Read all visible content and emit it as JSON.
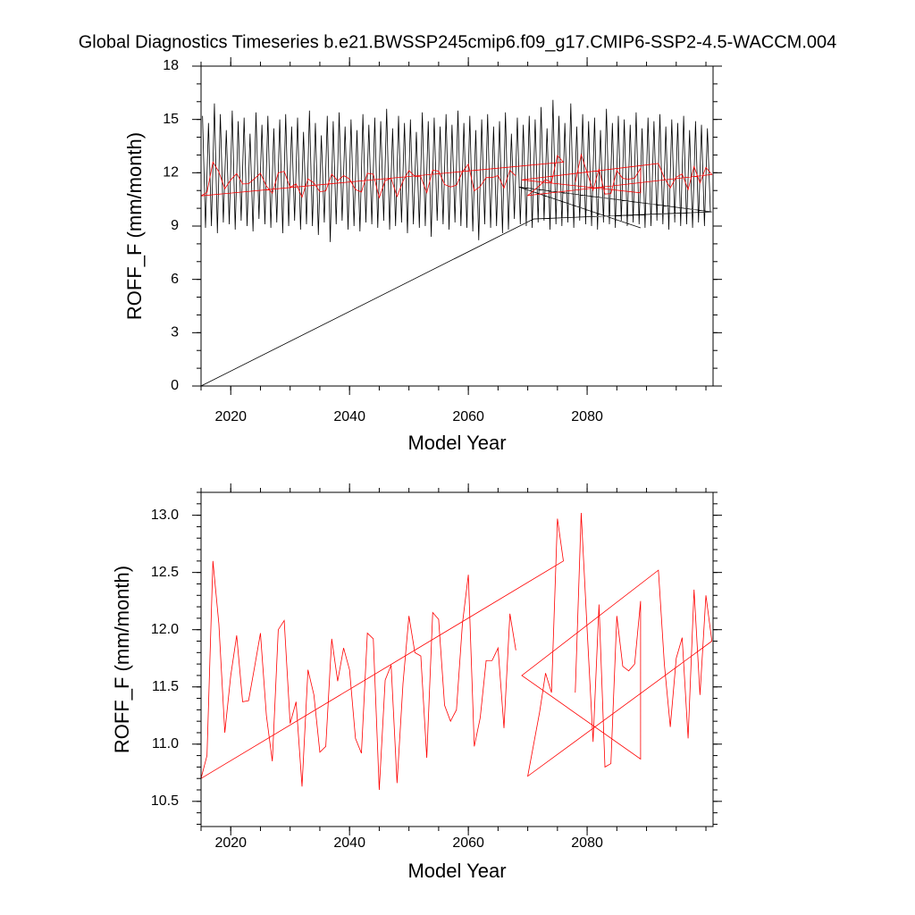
{
  "chart_data": [
    {
      "type": "line",
      "title": "Global Diagnostics Timeseries b.e21.BWSSP245cmip6.f09_g17.CMIP6-SSP2-4.5-WACCM.004",
      "x_label": "Model Year",
      "y_label": "ROFF_F (mm/month)",
      "xlim": [
        2015,
        2101.2
      ],
      "xticks": [
        2020,
        2040,
        2060,
        2080
      ],
      "ylim": [
        0,
        18
      ],
      "yticks": [
        0,
        3,
        6,
        9,
        12,
        15,
        18
      ],
      "series": [
        {
          "color": "#000000",
          "x": [
            2015,
            2071,
            2101,
            2068.5,
            2089,
            null,
            2015.25,
            2015.75,
            2016.25,
            2016.75,
            2017.25,
            2017.75,
            2018.25,
            2018.75,
            2019.25,
            2019.75,
            2020.25,
            2020.75,
            2021.25,
            2021.75,
            2022.25,
            2022.75,
            2023.25,
            2023.75,
            2024.25,
            2024.75,
            2025.25,
            2025.75,
            2026.25,
            2026.75,
            2027.25,
            2027.75,
            2028.25,
            2028.75,
            2029.25,
            2029.75,
            2030.25,
            2030.75,
            2031.25,
            2031.75,
            2032.25,
            2032.75,
            2033.25,
            2033.75,
            2034.25,
            2034.75,
            2035.25,
            2035.75,
            2036.25,
            2036.75,
            2037.25,
            2037.75,
            2038.25,
            2038.75,
            2039.25,
            2039.75,
            2040.25,
            2040.75,
            2041.25,
            2041.75,
            2042.25,
            2042.75,
            2043.25,
            2043.75,
            2044.25,
            2044.75,
            2045.25,
            2045.75,
            2046.25,
            2046.75,
            2047.25,
            2047.75,
            2048.25,
            2048.75,
            2049.25,
            2049.75,
            2050.25,
            2050.75,
            2051.25,
            2051.75,
            2052.25,
            2052.75,
            2053.25,
            2053.75,
            2054.25,
            2054.75,
            2055.25,
            2055.75,
            2056.25,
            2056.75,
            2057.25,
            2057.75,
            2058.25,
            2058.75,
            2059.25,
            2059.75,
            2060.25,
            2060.75,
            2061.25,
            2061.75,
            2062.25,
            2062.75,
            2063.25,
            2063.75,
            2064.25,
            2064.75,
            2065.25,
            2065.75,
            2066.25,
            2066.75,
            2067.25,
            2067.75,
            2068.25,
            2068.75,
            2069.25,
            2069.75,
            2070.25,
            2070.75,
            2071.25,
            2071.75,
            2072.25,
            2072.75,
            2073.25,
            2073.75,
            2074.25,
            2074.75,
            2075.25,
            2075.75,
            2076.25,
            2076.75,
            2077.25,
            2077.75,
            2078.25,
            2078.75,
            2079.25,
            2079.75,
            2080.25,
            2080.75,
            2081.25,
            2081.75,
            2082.25,
            2082.75,
            2083.25,
            2083.75,
            2084.25,
            2084.75,
            2085.25,
            2085.75,
            2086.25,
            2086.75,
            2087.25,
            2087.75,
            2088.25,
            2088.75,
            2089.25,
            2089.75,
            2090.25,
            2090.75,
            2091.25,
            2091.75,
            2092.25,
            2092.75,
            2093.25,
            2093.75,
            2094.25,
            2094.75,
            2095.25,
            2095.75,
            2096.25,
            2096.75,
            2097.25,
            2097.75,
            2098.25,
            2098.75,
            2099.25,
            2099.75,
            2100.25,
            2100.75
          ],
          "values": [
            0,
            9.4,
            9.8,
            11.2,
            8.9,
            null,
            15.2,
            8.9,
            14.8,
            9.0,
            15.9,
            8.6,
            15.3,
            9.2,
            14.4,
            9.1,
            15.5,
            8.8,
            14.9,
            9.3,
            15.1,
            9.0,
            14.2,
            8.7,
            15.4,
            9.4,
            14.7,
            9.1,
            15.2,
            8.9,
            14.5,
            9.2,
            15.0,
            8.6,
            15.3,
            9.0,
            14.6,
            9.3,
            15.1,
            8.8,
            14.3,
            9.1,
            15.5,
            9.0,
            14.8,
            8.5,
            14.1,
            9.2,
            15.2,
            8.1,
            14.9,
            9.1,
            15.4,
            9.3,
            14.6,
            8.8,
            15.0,
            9.0,
            14.4,
            8.7,
            15.3,
            9.2,
            14.7,
            9.1,
            15.1,
            8.9,
            14.9,
            9.3,
            15.6,
            8.8,
            14.5,
            9.0,
            15.2,
            9.2,
            14.8,
            8.6,
            15.0,
            9.1,
            14.3,
            8.9,
            15.4,
            9.0,
            14.9,
            8.4,
            15.1,
            9.3,
            14.6,
            9.1,
            15.3,
            8.8,
            14.7,
            9.2,
            15.5,
            9.0,
            14.8,
            8.9,
            15.2,
            8.7,
            14.4,
            8.2,
            15.0,
            9.1,
            15.3,
            8.9,
            14.6,
            9.0,
            14.9,
            8.6,
            15.4,
            8.8,
            14.2,
            9.4,
            15.1,
            9.1,
            14.7,
            9.0,
            15.2,
            8.9,
            15.0,
            9.2,
            15.7,
            9.3,
            14.5,
            8.8,
            16.1,
            9.1,
            15.2,
            9.0,
            14.8,
            9.2,
            15.9,
            8.9,
            14.6,
            9.3,
            15.3,
            9.1,
            14.9,
            9.0,
            15.1,
            8.8,
            14.4,
            9.2,
            15.6,
            9.1,
            14.8,
            8.9,
            15.2,
            9.3,
            15.0,
            9.0,
            14.7,
            9.2,
            15.4,
            9.1,
            14.5,
            8.9,
            15.1,
            9.0,
            14.9,
            9.3,
            15.3,
            9.1,
            14.6,
            8.8,
            15.0,
            9.2,
            14.8,
            9.0,
            15.2,
            9.1,
            14.4,
            8.9,
            14.9,
            9.2,
            14.7,
            9.0,
            14.5,
            9.8
          ]
        },
        {
          "color": "#ff0000",
          "x": [
            2078,
            2079,
            2080,
            2081,
            2082,
            2083,
            2084,
            2085,
            2086,
            2087,
            2088,
            2089,
            2089,
            2069,
            2092,
            2093,
            2094,
            2095,
            2096,
            2097,
            2098,
            2099,
            2100,
            2101,
            2070,
            2072,
            2073,
            2074,
            2075,
            2076,
            2015,
            2016,
            2017,
            2018,
            2019,
            2020,
            2021,
            2022,
            2023,
            2024,
            2025,
            2026,
            2027,
            2028,
            2029,
            2030,
            2031,
            2032,
            2033,
            2034,
            2035,
            2036,
            2037,
            2038,
            2039,
            2040,
            2041,
            2042,
            2043,
            2044,
            2045,
            2046,
            2047,
            2048,
            2049,
            2050,
            2051,
            2052,
            2053,
            2054,
            2055,
            2056,
            2057,
            2058,
            2059,
            2060,
            2061,
            2062,
            2063,
            2064,
            2065,
            2066,
            2067,
            2068
          ],
          "values": [
            11.45,
            13.02,
            12.0,
            11.02,
            12.22,
            10.8,
            10.83,
            12.12,
            11.68,
            11.64,
            11.7,
            12.25,
            10.87,
            11.6,
            12.52,
            11.7,
            11.15,
            11.75,
            11.93,
            11.05,
            12.35,
            11.43,
            12.3,
            11.9,
            10.72,
            11.28,
            11.62,
            11.45,
            12.97,
            12.6,
            10.7,
            10.9,
            12.6,
            12.05,
            11.1,
            11.6,
            11.95,
            11.37,
            11.38,
            11.67,
            11.97,
            11.25,
            10.85,
            12.0,
            12.08,
            11.18,
            11.37,
            10.63,
            11.65,
            11.43,
            10.93,
            10.98,
            11.92,
            11.55,
            11.84,
            11.65,
            11.05,
            10.92,
            11.97,
            11.92,
            10.6,
            11.56,
            11.69,
            10.66,
            11.53,
            12.12,
            11.8,
            11.77,
            10.88,
            12.15,
            12.09,
            11.34,
            11.2,
            11.3,
            12.05,
            12.48,
            10.98,
            11.23,
            11.73,
            11.73,
            11.84,
            11.14,
            12.14,
            11.82
          ]
        }
      ]
    },
    {
      "type": "line",
      "x_label": "Model Year",
      "y_label": "ROFF_F (mm/month)",
      "xlim": [
        2015,
        2101.2
      ],
      "xticks": [
        2020,
        2040,
        2060,
        2080
      ],
      "ylim": [
        10.28,
        13.2
      ],
      "yticks": [
        10.5,
        {
          "value": 11,
          "label": "11.0"
        },
        11.5,
        {
          "value": 12,
          "label": "12.0"
        },
        12.5,
        {
          "value": 13,
          "label": "13.0"
        }
      ],
      "series": [
        {
          "color": "#ff0000",
          "x": [
            2078,
            2079,
            2080,
            2081,
            2082,
            2083,
            2084,
            2085,
            2086,
            2087,
            2088,
            2089,
            2089,
            2069,
            2092,
            2093,
            2094,
            2095,
            2096,
            2097,
            2098,
            2099,
            2100,
            2101,
            2070,
            2072,
            2073,
            2074,
            2075,
            2076,
            2015,
            2016,
            2017,
            2018,
            2019,
            2020,
            2021,
            2022,
            2023,
            2024,
            2025,
            2026,
            2027,
            2028,
            2029,
            2030,
            2031,
            2032,
            2033,
            2034,
            2035,
            2036,
            2037,
            2038,
            2039,
            2040,
            2041,
            2042,
            2043,
            2044,
            2045,
            2046,
            2047,
            2048,
            2049,
            2050,
            2051,
            2052,
            2053,
            2054,
            2055,
            2056,
            2057,
            2058,
            2059,
            2060,
            2061,
            2062,
            2063,
            2064,
            2065,
            2066,
            2067,
            2068
          ],
          "values": [
            11.45,
            13.02,
            12.0,
            11.02,
            12.22,
            10.8,
            10.83,
            12.12,
            11.68,
            11.64,
            11.7,
            12.25,
            10.87,
            11.6,
            12.52,
            11.7,
            11.15,
            11.75,
            11.93,
            11.05,
            12.35,
            11.43,
            12.3,
            11.9,
            10.72,
            11.28,
            11.62,
            11.45,
            12.97,
            12.6,
            10.7,
            10.9,
            12.6,
            12.05,
            11.1,
            11.6,
            11.95,
            11.37,
            11.38,
            11.67,
            11.97,
            11.25,
            10.85,
            12.0,
            12.08,
            11.18,
            11.37,
            10.63,
            11.65,
            11.43,
            10.93,
            10.98,
            11.92,
            11.55,
            11.84,
            11.65,
            11.05,
            10.92,
            11.97,
            11.92,
            10.6,
            11.56,
            11.69,
            10.66,
            11.53,
            12.12,
            11.8,
            11.77,
            10.88,
            12.15,
            12.09,
            11.34,
            11.2,
            11.3,
            12.05,
            12.48,
            10.98,
            11.23,
            11.73,
            11.73,
            11.84,
            11.14,
            12.14,
            11.82
          ]
        }
      ]
    }
  ]
}
